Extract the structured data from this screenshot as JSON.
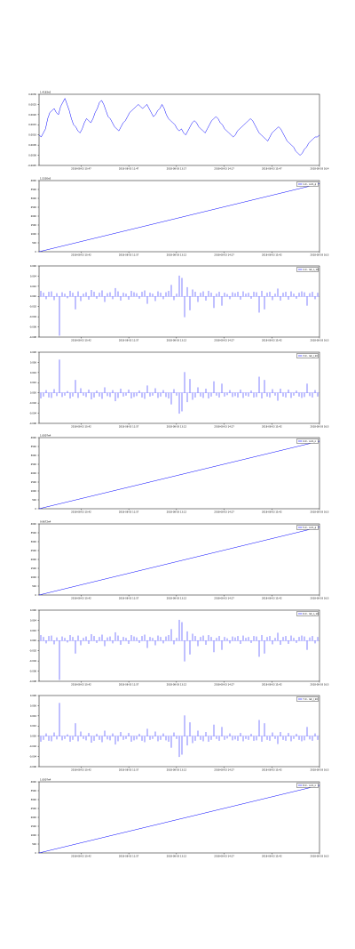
{
  "chart_data": [
    {
      "type": "line",
      "offset_text": "1.4183e2",
      "legend": null,
      "y_ticks": [
        "0.0030",
        "0.0025",
        "0.0020",
        "0.0015",
        "0.0010",
        "0.0005",
        "0.0000",
        "-0.0005"
      ],
      "ylim": [
        -0.0005,
        0.003
      ],
      "x_ticks": [
        "2018-08-03 10:47",
        "2018-08-03 11:47",
        "2018-08-03 13:17",
        "2018-08-03 14:17",
        "2018-08-03 15:47",
        "2018-08-03 16:4"
      ],
      "series": [
        {
          "color": "#0000ff",
          "values": [
            0.001,
            0.0009,
            0.0011,
            0.0013,
            0.0018,
            0.0021,
            0.0022,
            0.0023,
            0.0021,
            0.002,
            0.0024,
            0.0026,
            0.0028,
            0.0025,
            0.0022,
            0.0018,
            0.0015,
            0.0014,
            0.0012,
            0.0011,
            0.0013,
            0.0016,
            0.0018,
            0.0017,
            0.0016,
            0.0018,
            0.0021,
            0.0023,
            0.0026,
            0.0027,
            0.0025,
            0.0022,
            0.0019,
            0.0018,
            0.0016,
            0.0014,
            0.0013,
            0.0012,
            0.0014,
            0.0016,
            0.0017,
            0.0019,
            0.0021,
            0.0022,
            0.0023,
            0.0024,
            0.0025,
            0.0024,
            0.0023,
            0.0024,
            0.0025,
            0.0023,
            0.0021,
            0.0019,
            0.002,
            0.0022,
            0.0023,
            0.0025,
            0.0023,
            0.002,
            0.0018,
            0.0017,
            0.0016,
            0.0015,
            0.0013,
            0.0012,
            0.0013,
            0.0011,
            0.001,
            0.0012,
            0.0014,
            0.0016,
            0.0017,
            0.0016,
            0.0014,
            0.0013,
            0.0012,
            0.0011,
            0.0013,
            0.0015,
            0.0017,
            0.0018,
            0.0019,
            0.0018,
            0.0016,
            0.0015,
            0.0013,
            0.0012,
            0.0011,
            0.001,
            0.0009,
            0.001,
            0.0012,
            0.0013,
            0.0014,
            0.0015,
            0.0016,
            0.0017,
            0.0018,
            0.0017,
            0.0015,
            0.0013,
            0.0011,
            0.001,
            0.0009,
            0.0008,
            0.0007,
            0.0009,
            0.0011,
            0.0012,
            0.0013,
            0.0014,
            0.0013,
            0.0011,
            0.0009,
            0.0007,
            0.0006,
            0.0005,
            0.0004,
            0.0002,
            0.0001,
            0.0,
            0.0001,
            0.0003,
            0.0004,
            0.0006,
            0.0007,
            0.0008,
            0.0009,
            0.0009,
            0.001
          ]
        }
      ]
    },
    {
      "type": "line",
      "offset_text": "1.5330e5",
      "legend": [
        "1.0 - cum_q"
      ],
      "y_ticks": [
        "4000",
        "3500",
        "3000",
        "2500",
        "2000",
        "1500",
        "1000",
        "500",
        "0"
      ],
      "ylim": [
        0,
        4000
      ],
      "x_ticks": [
        "2018-08-03 10:42",
        "2018-08-03 11:57",
        "2018-08-03 13:12",
        "2018-08-03 14:27",
        "2018-08-03 15:42",
        "2018-08-03 16:5"
      ],
      "series": [
        {
          "color": "#0000ff",
          "x": [
            0,
            1
          ],
          "values": [
            0,
            3820
          ]
        }
      ]
    },
    {
      "type": "bar",
      "offset_text": "",
      "legend": [
        "2.0 - ret_n_10"
      ],
      "y_ticks": [
        "0.006",
        "0.004",
        "0.002",
        "0.000",
        "-0.002",
        "-0.004",
        "-0.006",
        "-0.008"
      ],
      "ylim": [
        -0.0088,
        0.0066
      ],
      "x_ticks": [
        "2018-08-03 10:42",
        "2018-08-03 11:57",
        "2018-08-03 13:12",
        "2018-08-03 14:27",
        "2018-08-03 15:42",
        "2018-08-03 16:5"
      ],
      "series": [
        {
          "color": "#0000ff",
          "values": [
            0.0012,
            0.0008,
            -0.0006,
            0.001,
            0.0011,
            -0.0008,
            0.0007,
            -0.0085,
            0.0009,
            0.0006,
            -0.0004,
            0.0012,
            0.0008,
            -0.0028,
            0.0011,
            -0.001,
            0.0006,
            0.0009,
            -0.0007,
            0.0014,
            0.001,
            -0.0005,
            0.0008,
            0.0013,
            -0.0012,
            0.0007,
            0.0009,
            -0.0006,
            0.0018,
            0.0011,
            -0.0009,
            0.0008,
            0.0006,
            -0.0007,
            0.0012,
            0.0009,
            0.0007,
            -0.0005,
            0.001,
            0.0013,
            -0.0016,
            0.0008,
            0.0006,
            -0.001,
            0.0011,
            0.0008,
            -0.0006,
            0.0009,
            0.0012,
            0.0025,
            -0.0008,
            0.0006,
            0.0045,
            0.004,
            -0.0045,
            0.002,
            -0.003,
            0.0015,
            0.001,
            -0.0012,
            0.0008,
            0.0011,
            -0.0009,
            0.0012,
            0.0008,
            -0.0025,
            0.0006,
            0.001,
            -0.002,
            0.0008,
            0.0005,
            -0.0006,
            0.0009,
            0.0007,
            0.001,
            -0.0007,
            0.0011,
            0.0006,
            0.0008,
            -0.0005,
            0.001,
            0.0009,
            -0.0035,
            0.0012,
            -0.0028,
            0.0008,
            0.001,
            -0.0008,
            0.0006,
            0.0017,
            -0.0009,
            0.0008,
            0.001,
            -0.0007,
            0.0011,
            0.0006,
            -0.0005,
            0.0008,
            0.0011,
            0.0009,
            -0.002,
            0.0007,
            0.001,
            -0.0006,
            0.0008
          ]
        }
      ]
    },
    {
      "type": "bar",
      "offset_text": "",
      "legend": [
        "3.0 - ret_l_10"
      ],
      "y_ticks": [
        "0.008",
        "0.006",
        "0.004",
        "0.002",
        "0.000",
        "-0.002",
        "-0.004",
        "-0.006"
      ],
      "ylim": [
        -0.0066,
        0.0088
      ],
      "x_ticks": [
        "2018-08-03 10:42",
        "2018-08-03 11:57",
        "2018-08-03 13:12",
        "2018-08-03 14:27",
        "2018-08-03 15:42",
        "2018-08-03 16:5"
      ],
      "series": [
        {
          "color": "#0000ff",
          "values": [
            -0.0012,
            -0.0008,
            0.0006,
            -0.001,
            -0.0011,
            0.0008,
            -0.0007,
            0.0072,
            -0.0009,
            -0.0006,
            0.0004,
            -0.0012,
            -0.0008,
            0.0028,
            -0.0011,
            0.001,
            -0.0006,
            -0.0009,
            0.0007,
            -0.0014,
            -0.001,
            0.0005,
            -0.0008,
            -0.0013,
            0.0012,
            -0.0007,
            -0.0009,
            0.0006,
            -0.0018,
            -0.0011,
            0.0009,
            -0.0008,
            -0.0006,
            0.0007,
            -0.0012,
            -0.0009,
            -0.0007,
            0.0005,
            -0.001,
            -0.0013,
            0.0016,
            -0.0008,
            -0.0006,
            0.001,
            -0.0011,
            -0.0008,
            0.0006,
            -0.0009,
            -0.0012,
            -0.0025,
            0.0008,
            -0.0006,
            -0.0045,
            -0.004,
            0.0045,
            -0.002,
            0.003,
            -0.0015,
            -0.001,
            0.0012,
            -0.0008,
            -0.0011,
            0.0009,
            -0.0012,
            -0.0008,
            0.0025,
            -0.0006,
            -0.001,
            0.002,
            -0.0008,
            -0.0005,
            0.0006,
            -0.0009,
            -0.0007,
            -0.001,
            0.0007,
            -0.0011,
            -0.0006,
            -0.0008,
            0.0005,
            -0.001,
            -0.0009,
            0.0035,
            -0.0012,
            0.0028,
            -0.0008,
            -0.001,
            0.0008,
            -0.0006,
            -0.0017,
            0.0009,
            -0.0008,
            -0.001,
            0.0007,
            -0.0011,
            -0.0006,
            0.0005,
            -0.0008,
            -0.0011,
            -0.0009,
            0.002,
            -0.0007,
            -0.001,
            0.0006,
            -0.0008
          ]
        }
      ]
    },
    {
      "type": "line",
      "offset_text": "1.0007e4",
      "legend": [
        "4.0 - cum_n"
      ],
      "y_ticks": [
        "4000",
        "3500",
        "3000",
        "2500",
        "2000",
        "1500",
        "1000",
        "500",
        "0"
      ],
      "ylim": [
        0,
        4000
      ],
      "x_ticks": [
        "2018-08-03 10:42",
        "2018-08-03 11:57",
        "2018-08-03 13:12",
        "2018-08-03 14:27",
        "2018-08-03 15:42",
        "2018-08-03 16:5"
      ],
      "series": [
        {
          "color": "#0000ff",
          "x": [
            0,
            1
          ],
          "values": [
            0,
            3800
          ]
        }
      ]
    },
    {
      "type": "line",
      "offset_text": "9.9672e4",
      "legend": [
        "5.0 - cum_q"
      ],
      "y_ticks": [
        "4000",
        "3500",
        "3000",
        "2500",
        "2000",
        "1500",
        "1000",
        "500",
        "0"
      ],
      "ylim": [
        0,
        4000
      ],
      "x_ticks": [
        "2018-08-03 10:42",
        "2018-08-03 11:57",
        "2018-08-03 13:12",
        "2018-08-03 14:27",
        "2018-08-03 15:42",
        "2018-08-03 16:5"
      ],
      "series": [
        {
          "color": "#0000ff",
          "x": [
            0,
            1
          ],
          "values": [
            0,
            3820
          ]
        }
      ]
    },
    {
      "type": "bar",
      "offset_text": "",
      "legend": [
        "6.0 - ret_n_10"
      ],
      "y_ticks": [
        "0.006",
        "0.004",
        "0.002",
        "0.000",
        "-0.002",
        "-0.004",
        "-0.006",
        "-0.008"
      ],
      "ylim": [
        -0.0088,
        0.0066
      ],
      "x_ticks": [
        "2018-08-03 10:42",
        "2018-08-03 11:57",
        "2018-08-03 13:12",
        "2018-08-03 14:27",
        "2018-08-03 15:42",
        "2018-08-03 16:5"
      ],
      "series": [
        {
          "color": "#0000ff",
          "values": [
            0.0012,
            0.0008,
            -0.0006,
            0.001,
            0.0011,
            -0.0008,
            0.0007,
            -0.0085,
            0.0009,
            0.0006,
            -0.0004,
            0.0012,
            0.0008,
            -0.0028,
            0.0011,
            -0.001,
            0.0006,
            0.0009,
            -0.0007,
            0.0014,
            0.001,
            -0.0005,
            0.0008,
            0.0013,
            -0.0012,
            0.0007,
            0.0009,
            -0.0006,
            0.0018,
            0.0011,
            -0.0009,
            0.0008,
            0.0006,
            -0.0007,
            0.0012,
            0.0009,
            0.0007,
            -0.0005,
            0.001,
            0.0013,
            -0.0016,
            0.0008,
            0.0006,
            -0.001,
            0.0011,
            0.0008,
            -0.0006,
            0.0009,
            0.0012,
            0.0025,
            -0.0008,
            0.0006,
            0.0045,
            0.004,
            -0.0045,
            0.002,
            -0.003,
            0.0015,
            0.001,
            -0.0012,
            0.0008,
            0.0011,
            -0.0009,
            0.0012,
            0.0008,
            -0.0025,
            0.0006,
            0.001,
            -0.002,
            0.0008,
            0.0005,
            -0.0006,
            0.0009,
            0.0007,
            0.001,
            -0.0007,
            0.0011,
            0.0006,
            0.0008,
            -0.0005,
            0.001,
            0.0009,
            -0.0035,
            0.0012,
            -0.0028,
            0.0008,
            0.001,
            -0.0008,
            0.0006,
            0.0017,
            -0.0009,
            0.0008,
            0.001,
            -0.0007,
            0.0011,
            0.0006,
            -0.0005,
            0.0008,
            0.0011,
            0.0009,
            -0.002,
            0.0007,
            0.001,
            -0.0006,
            0.0008
          ]
        }
      ]
    },
    {
      "type": "bar",
      "offset_text": "",
      "legend": [
        "7.0 - ret_l_10"
      ],
      "y_ticks": [
        "0.008",
        "0.006",
        "0.004",
        "0.002",
        "0.000",
        "-0.002",
        "-0.004",
        "-0.006"
      ],
      "ylim": [
        -0.0066,
        0.0088
      ],
      "x_ticks": [
        "2018-08-03 10:42",
        "2018-08-03 11:57",
        "2018-08-03 13:12",
        "2018-08-03 14:27",
        "2018-08-03 15:42",
        "2018-08-03 16:5"
      ],
      "series": [
        {
          "color": "#0000ff",
          "values": [
            -0.0012,
            -0.0008,
            0.0006,
            -0.001,
            -0.0011,
            0.0008,
            -0.0007,
            0.0072,
            -0.0009,
            -0.0006,
            0.0004,
            -0.0012,
            -0.0008,
            0.0028,
            -0.0011,
            0.001,
            -0.0006,
            -0.0009,
            0.0007,
            -0.0014,
            -0.001,
            0.0005,
            -0.0008,
            -0.0013,
            0.0012,
            -0.0007,
            -0.0009,
            0.0006,
            -0.0018,
            -0.0011,
            0.0009,
            -0.0008,
            -0.0006,
            0.0007,
            -0.0012,
            -0.0009,
            -0.0007,
            0.0005,
            -0.001,
            -0.0013,
            0.0016,
            -0.0008,
            -0.0006,
            0.001,
            -0.0011,
            -0.0008,
            0.0006,
            -0.0009,
            -0.0012,
            -0.0025,
            0.0008,
            -0.0006,
            -0.0045,
            -0.004,
            0.0045,
            -0.002,
            0.003,
            -0.0015,
            -0.001,
            0.0012,
            -0.0008,
            -0.0011,
            0.0009,
            -0.0012,
            -0.0008,
            0.0025,
            -0.0006,
            -0.001,
            0.002,
            -0.0008,
            -0.0005,
            0.0006,
            -0.0009,
            -0.0007,
            -0.001,
            0.0007,
            -0.0011,
            -0.0006,
            -0.0008,
            0.0005,
            -0.001,
            -0.0009,
            0.0035,
            -0.0012,
            0.0028,
            -0.0008,
            -0.001,
            0.0008,
            -0.0006,
            -0.0017,
            0.0009,
            -0.0008,
            -0.001,
            0.0007,
            -0.0011,
            -0.0006,
            0.0005,
            -0.0008,
            -0.0011,
            -0.0009,
            0.002,
            -0.0007,
            -0.001,
            0.0006,
            -0.0008
          ]
        }
      ]
    },
    {
      "type": "line",
      "offset_text": "1.0007e4",
      "legend": [
        "8.0 - cum_n"
      ],
      "y_ticks": [
        "4000",
        "3500",
        "3000",
        "2500",
        "2000",
        "1500",
        "1000",
        "500",
        "0"
      ],
      "ylim": [
        0,
        4000
      ],
      "x_ticks": [
        "2018-08-03 10:42",
        "2018-08-03 11:57",
        "2018-08-03 13:12",
        "2018-08-03 14:27",
        "2018-08-03 15:42",
        "2018-08-03 16:5"
      ],
      "series": [
        {
          "color": "#0000ff",
          "x": [
            0,
            1
          ],
          "values": [
            0,
            3800
          ]
        }
      ]
    }
  ]
}
